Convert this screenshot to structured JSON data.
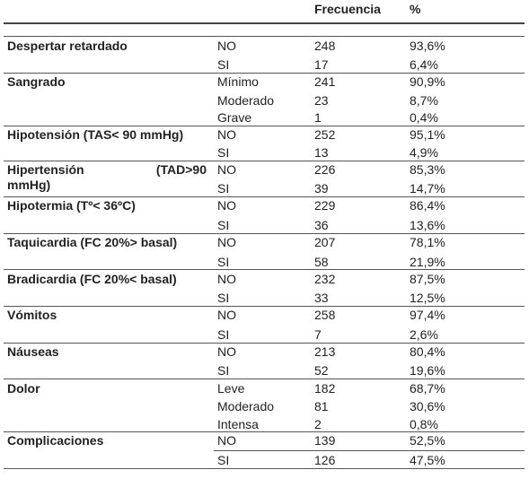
{
  "header": {
    "col_freq": "Frecuencia",
    "col_pct": "%"
  },
  "rows": [
    {
      "category": "Despertar retardado",
      "options": [
        {
          "label": "NO",
          "freq": "248",
          "pct": "93,6%"
        },
        {
          "label": "SI",
          "freq": "17",
          "pct": "6,4%"
        }
      ]
    },
    {
      "category": "Sangrado",
      "options": [
        {
          "label": "Mínimo",
          "freq": "241",
          "pct": "90,9%"
        },
        {
          "label": "Moderado",
          "freq": "23",
          "pct": "8,7%"
        },
        {
          "label": "Grave",
          "freq": "1",
          "pct": "0,4%"
        }
      ]
    },
    {
      "category": "Hipotensión (TAS< 90 mmHg)",
      "options": [
        {
          "label": "NO",
          "freq": "252",
          "pct": "95,1%"
        },
        {
          "label": "SI",
          "freq": "13",
          "pct": "4,9%"
        }
      ]
    },
    {
      "category_line1_a": "Hipertensión",
      "category_line1_b": "(TAD>90",
      "category_line2": "mmHg)",
      "options": [
        {
          "label": "NO",
          "freq": "226",
          "pct": "85,3%"
        },
        {
          "label": "SI",
          "freq": "39",
          "pct": "14,7%"
        }
      ]
    },
    {
      "category": "Hipotermia (Tº< 36ºC)",
      "options": [
        {
          "label": "NO",
          "freq": "229",
          "pct": "86,4%"
        },
        {
          "label": "SI",
          "freq": "36",
          "pct": "13,6%"
        }
      ]
    },
    {
      "category": "Taquicardia (FC 20%> basal)",
      "options": [
        {
          "label": "NO",
          "freq": "207",
          "pct": "78,1%"
        },
        {
          "label": "SI",
          "freq": "58",
          "pct": "21,9%"
        }
      ]
    },
    {
      "category": "Bradicardia (FC 20%< basal)",
      "options": [
        {
          "label": "NO",
          "freq": "232",
          "pct": "87,5%"
        },
        {
          "label": "SI",
          "freq": "33",
          "pct": "12,5%"
        }
      ]
    },
    {
      "category": "Vómitos",
      "options": [
        {
          "label": "NO",
          "freq": "258",
          "pct": "97,4%"
        },
        {
          "label": "SI",
          "freq": "7",
          "pct": "2,6%"
        }
      ]
    },
    {
      "category": "Náuseas",
      "options": [
        {
          "label": "NO",
          "freq": "213",
          "pct": "80,4%"
        },
        {
          "label": "SI",
          "freq": "52",
          "pct": "19,6%"
        }
      ]
    },
    {
      "category": "Dolor",
      "options": [
        {
          "label": "Leve",
          "freq": "182",
          "pct": "68,7%"
        },
        {
          "label": "Moderado",
          "freq": "81",
          "pct": "30,6%"
        },
        {
          "label": "Intensa",
          "freq": "2",
          "pct": "0,8%"
        }
      ]
    },
    {
      "category": "Complicaciones",
      "options": [
        {
          "label": "NO",
          "freq": "139",
          "pct": "52,5%"
        },
        {
          "label": "SI",
          "freq": "126",
          "pct": "47,5%"
        }
      ]
    }
  ]
}
